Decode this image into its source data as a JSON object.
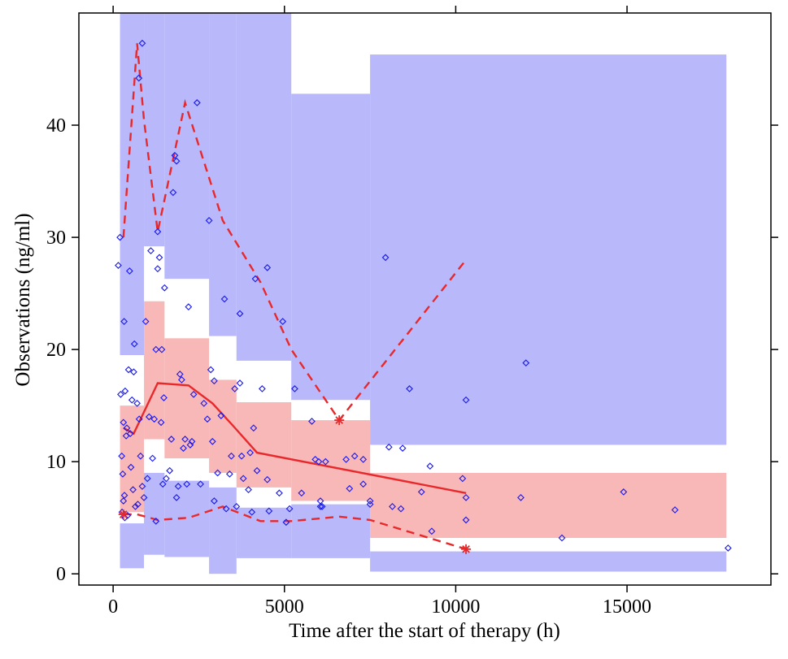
{
  "chart_data": {
    "type": "scatter",
    "title": "",
    "xlabel": "Time after the start of therapy (h)",
    "ylabel": "Observations (ng/ml)",
    "xlim": [
      -1000,
      19200
    ],
    "ylim": [
      -1,
      50
    ],
    "x_ticks": [
      0,
      5000,
      10000,
      15000
    ],
    "y_ticks": [
      0,
      10,
      20,
      30,
      40
    ],
    "x_tick_labels": [
      "0",
      "5000",
      "10000",
      "15000"
    ],
    "y_tick_labels": [
      "0",
      "10",
      "20",
      "30",
      "40"
    ],
    "grid": false,
    "legend": "none",
    "colors": {
      "outer_band": "#b8b8fb",
      "median_band": "#f9b8b8",
      "observation_marker": "#1818ee",
      "percentile_line": "#e8282a"
    },
    "bins": [
      {
        "x0": 200,
        "x1": 900,
        "lo_band": [
          0.5,
          4.5
        ],
        "mid_band": [
          5.5,
          15
        ],
        "hi_band": [
          19.5,
          50
        ]
      },
      {
        "x0": 900,
        "x1": 1500,
        "lo_band": [
          1.7,
          9.0
        ],
        "mid_band": [
          12,
          24.3
        ],
        "hi_band": [
          29.2,
          50
        ]
      },
      {
        "x0": 1500,
        "x1": 2800,
        "lo_band": [
          1.5,
          8.3
        ],
        "mid_band": [
          10.3,
          21
        ],
        "hi_band": [
          26.3,
          50
        ]
      },
      {
        "x0": 2800,
        "x1": 3600,
        "lo_band": [
          0,
          7.7
        ],
        "mid_band": [
          9.0,
          17.3
        ],
        "hi_band": [
          21.2,
          50
        ]
      },
      {
        "x0": 3600,
        "x1": 5200,
        "lo_band": [
          1.4,
          5.9
        ],
        "mid_band": [
          7.7,
          15.3
        ],
        "hi_band": [
          19.0,
          50
        ]
      },
      {
        "x0": 5200,
        "x1": 7500,
        "lo_band": [
          1.4,
          6.2
        ],
        "mid_band": [
          6.5,
          13.7
        ],
        "hi_band": [
          15.5,
          42.8
        ]
      },
      {
        "x0": 7500,
        "x1": 17900,
        "lo_band": [
          0.2,
          2.0
        ],
        "mid_band": [
          3.2,
          9.0
        ],
        "hi_band": [
          11.5,
          46.3
        ]
      }
    ],
    "series": [
      {
        "name": "",
        "style": "points",
        "points": [
          [
            150,
            27.5
          ],
          [
            200,
            30
          ],
          [
            220,
            16
          ],
          [
            250,
            10.5
          ],
          [
            260,
            5.5
          ],
          [
            280,
            8.9
          ],
          [
            300,
            6.5
          ],
          [
            300,
            13.5
          ],
          [
            320,
            22.5
          ],
          [
            330,
            7
          ],
          [
            340,
            5
          ],
          [
            350,
            16.3
          ],
          [
            380,
            12.3
          ],
          [
            400,
            13
          ],
          [
            420,
            5.2
          ],
          [
            450,
            18.2
          ],
          [
            480,
            27
          ],
          [
            500,
            12.5
          ],
          [
            520,
            9.5
          ],
          [
            550,
            15.5
          ],
          [
            580,
            7.5
          ],
          [
            600,
            18
          ],
          [
            620,
            20.5
          ],
          [
            650,
            6
          ],
          [
            700,
            15.2
          ],
          [
            720,
            6.2
          ],
          [
            750,
            44.2
          ],
          [
            760,
            13.8
          ],
          [
            800,
            10.5
          ],
          [
            850,
            47.3
          ],
          [
            850,
            7.8
          ],
          [
            900,
            6.8
          ],
          [
            950,
            22.5
          ],
          [
            1000,
            8.5
          ],
          [
            1050,
            14
          ],
          [
            1100,
            28.8
          ],
          [
            1150,
            10.3
          ],
          [
            1200,
            13.8
          ],
          [
            1250,
            20
          ],
          [
            1250,
            4.7
          ],
          [
            1300,
            27.2
          ],
          [
            1300,
            30.5
          ],
          [
            1350,
            28.2
          ],
          [
            1400,
            13.5
          ],
          [
            1420,
            20
          ],
          [
            1450,
            8
          ],
          [
            1480,
            15.7
          ],
          [
            1500,
            25.5
          ],
          [
            1550,
            8.5
          ],
          [
            1650,
            9.2
          ],
          [
            1700,
            12
          ],
          [
            1750,
            34
          ],
          [
            1800,
            37.3
          ],
          [
            1850,
            36.8
          ],
          [
            1850,
            6.8
          ],
          [
            1900,
            7.8
          ],
          [
            1950,
            17.8
          ],
          [
            2000,
            17.3
          ],
          [
            2050,
            11.2
          ],
          [
            2100,
            12
          ],
          [
            2150,
            8
          ],
          [
            2200,
            23.8
          ],
          [
            2250,
            11.5
          ],
          [
            2300,
            11.8
          ],
          [
            2350,
            16
          ],
          [
            2450,
            42
          ],
          [
            2550,
            8
          ],
          [
            2650,
            15.2
          ],
          [
            2750,
            13.8
          ],
          [
            2800,
            31.5
          ],
          [
            2850,
            18.2
          ],
          [
            2900,
            11.8
          ],
          [
            2950,
            17.2
          ],
          [
            2950,
            6.5
          ],
          [
            3050,
            9
          ],
          [
            3150,
            14.1
          ],
          [
            3250,
            24.5
          ],
          [
            3300,
            5.8
          ],
          [
            3400,
            8.9
          ],
          [
            3450,
            10.5
          ],
          [
            3550,
            16.5
          ],
          [
            3600,
            6
          ],
          [
            3700,
            17
          ],
          [
            3700,
            23.2
          ],
          [
            3750,
            10.5
          ],
          [
            3800,
            8.5
          ],
          [
            3950,
            7.5
          ],
          [
            4000,
            10.8
          ],
          [
            4050,
            5.5
          ],
          [
            4100,
            13
          ],
          [
            4150,
            26.3
          ],
          [
            4200,
            9.2
          ],
          [
            4350,
            16.5
          ],
          [
            4500,
            27.3
          ],
          [
            4500,
            8.4
          ],
          [
            4550,
            5.6
          ],
          [
            4850,
            7.2
          ],
          [
            4950,
            22.5
          ],
          [
            5050,
            4.6
          ],
          [
            5150,
            5.8
          ],
          [
            5300,
            16.5
          ],
          [
            5500,
            7.2
          ],
          [
            5800,
            13.6
          ],
          [
            5900,
            10.2
          ],
          [
            6000,
            10
          ],
          [
            6050,
            6
          ],
          [
            6050,
            6.5
          ],
          [
            6100,
            6
          ],
          [
            6200,
            10
          ],
          [
            6800,
            10.2
          ],
          [
            6900,
            7.6
          ],
          [
            7050,
            10.5
          ],
          [
            7300,
            8
          ],
          [
            7500,
            6.2
          ],
          [
            7300,
            10.2
          ],
          [
            7500,
            6.5
          ],
          [
            7950,
            28.2
          ],
          [
            8050,
            11.3
          ],
          [
            8150,
            6
          ],
          [
            8400,
            5.8
          ],
          [
            8450,
            11.2
          ],
          [
            8650,
            16.5
          ],
          [
            9000,
            7.3
          ],
          [
            9250,
            9.6
          ],
          [
            9300,
            3.8
          ],
          [
            10200,
            8.5
          ],
          [
            10300,
            15.5
          ],
          [
            10300,
            4.8
          ],
          [
            10300,
            6.8
          ],
          [
            11900,
            6.8
          ],
          [
            12050,
            18.8
          ],
          [
            13100,
            3.2
          ],
          [
            14900,
            7.3
          ],
          [
            16400,
            5.7
          ],
          [
            17950,
            2.3
          ]
        ]
      },
      {
        "name": "",
        "style": "solid",
        "points": [
          [
            300,
            13
          ],
          [
            600,
            12.5
          ],
          [
            1300,
            17
          ],
          [
            2200,
            16.8
          ],
          [
            2900,
            15.2
          ],
          [
            3500,
            13.2
          ],
          [
            4200,
            10.8
          ],
          [
            10300,
            7.2
          ]
        ]
      },
      {
        "name": "",
        "style": "dashed",
        "points": [
          [
            300,
            30
          ],
          [
            700,
            47.3
          ],
          [
            900,
            40.5
          ],
          [
            1300,
            30.5
          ],
          [
            2100,
            42
          ],
          [
            3200,
            31.5
          ],
          [
            4300,
            26
          ],
          [
            5200,
            20
          ],
          [
            6600,
            13.7
          ],
          [
            10300,
            28
          ]
        ]
      },
      {
        "name": "",
        "style": "dashed",
        "points": [
          [
            300,
            5.3
          ],
          [
            700,
            5.3
          ],
          [
            1300,
            4.8
          ],
          [
            2200,
            5.0
          ],
          [
            3200,
            6.0
          ],
          [
            4300,
            4.7
          ],
          [
            5200,
            4.7
          ],
          [
            6600,
            5.1
          ],
          [
            7500,
            4.8
          ],
          [
            10300,
            2.2
          ]
        ]
      }
    ],
    "markers": [
      {
        "shape": "asterisk",
        "x": 6600,
        "y": 13.7
      },
      {
        "shape": "asterisk",
        "x": 10300,
        "y": 2.2
      },
      {
        "shape": "asterisk",
        "x": 300,
        "y": 5.3
      }
    ]
  }
}
